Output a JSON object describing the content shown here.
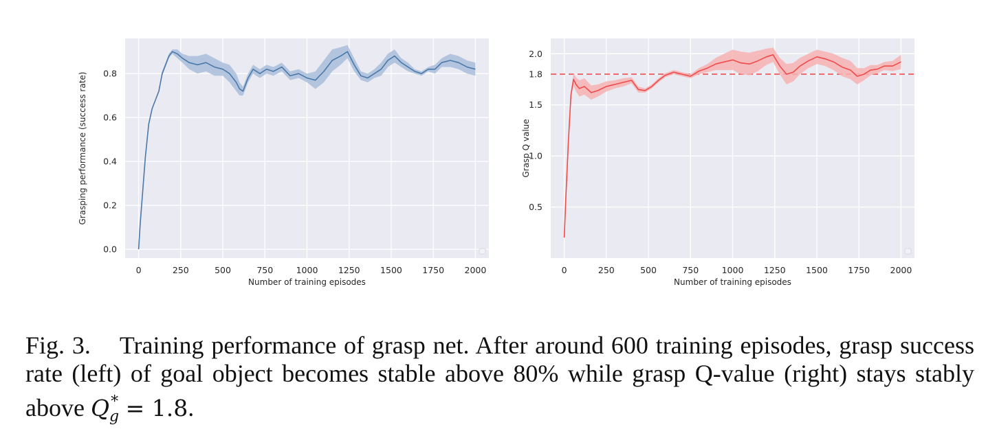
{
  "chart_data": [
    {
      "type": "line",
      "title": "",
      "xlabel": "Number of training episodes",
      "ylabel": "Grasping performance (success rate)",
      "xlim": [
        -80,
        2080
      ],
      "ylim": [
        -0.04,
        0.96
      ],
      "xticks": [
        0,
        250,
        500,
        750,
        1000,
        1250,
        1500,
        1750,
        2000
      ],
      "yticks": [
        0.0,
        0.2,
        0.4,
        0.6,
        0.8
      ],
      "ytick_labels": [
        "0.0",
        "0.2",
        "0.4",
        "0.6",
        "0.8"
      ],
      "grid": true,
      "series": [
        {
          "color": "#4a78a8",
          "band_color": "#a9bedb",
          "x": [
            0,
            10,
            25,
            40,
            60,
            80,
            100,
            120,
            140,
            160,
            180,
            200,
            230,
            260,
            300,
            350,
            400,
            450,
            500,
            540,
            580,
            600,
            620,
            650,
            680,
            720,
            760,
            800,
            850,
            900,
            950,
            1000,
            1050,
            1100,
            1150,
            1200,
            1240,
            1280,
            1320,
            1360,
            1400,
            1440,
            1480,
            1520,
            1560,
            1600,
            1640,
            1680,
            1720,
            1760,
            1800,
            1850,
            1900,
            1950,
            2000
          ],
          "y": [
            0.0,
            0.12,
            0.27,
            0.42,
            0.57,
            0.64,
            0.68,
            0.72,
            0.8,
            0.84,
            0.88,
            0.9,
            0.89,
            0.87,
            0.85,
            0.84,
            0.85,
            0.83,
            0.82,
            0.8,
            0.76,
            0.73,
            0.72,
            0.78,
            0.82,
            0.8,
            0.82,
            0.81,
            0.83,
            0.79,
            0.8,
            0.78,
            0.77,
            0.81,
            0.86,
            0.88,
            0.9,
            0.84,
            0.79,
            0.78,
            0.8,
            0.82,
            0.86,
            0.88,
            0.85,
            0.83,
            0.81,
            0.8,
            0.82,
            0.82,
            0.85,
            0.86,
            0.85,
            0.83,
            0.82
          ],
          "spread": [
            0.0,
            0.0,
            0.0,
            0.0,
            0.0,
            0.0,
            0.0,
            0.0,
            0.01,
            0.01,
            0.01,
            0.01,
            0.02,
            0.02,
            0.03,
            0.04,
            0.04,
            0.04,
            0.03,
            0.04,
            0.04,
            0.03,
            0.02,
            0.02,
            0.02,
            0.02,
            0.02,
            0.02,
            0.02,
            0.02,
            0.02,
            0.02,
            0.04,
            0.05,
            0.05,
            0.04,
            0.03,
            0.03,
            0.02,
            0.02,
            0.02,
            0.03,
            0.03,
            0.03,
            0.02,
            0.02,
            0.01,
            0.01,
            0.01,
            0.02,
            0.02,
            0.03,
            0.03,
            0.03,
            0.03
          ]
        }
      ]
    },
    {
      "type": "line",
      "title": "",
      "xlabel": "Number of training episodes",
      "ylabel": "Grasp Q value",
      "xlim": [
        -80,
        2080
      ],
      "ylim": [
        0.0,
        2.15
      ],
      "xticks": [
        0,
        250,
        500,
        750,
        1000,
        1250,
        1500,
        1750,
        2000
      ],
      "yticks": [
        0.5,
        1.0,
        1.5,
        1.8,
        2.0
      ],
      "ytick_labels": [
        "0.5",
        "1.0",
        "1.5",
        "1.8",
        "2.0"
      ],
      "grid": true,
      "reference_line": {
        "y": 1.8,
        "style": "dashed",
        "color": "#ee4c4c"
      },
      "series": [
        {
          "color": "#f04a4a",
          "band_color": "#f7b3b3",
          "x": [
            0,
            10,
            25,
            40,
            55,
            70,
            90,
            120,
            160,
            200,
            250,
            300,
            350,
            400,
            440,
            480,
            520,
            560,
            600,
            650,
            700,
            750,
            800,
            850,
            900,
            950,
            1000,
            1050,
            1100,
            1150,
            1200,
            1240,
            1280,
            1320,
            1360,
            1400,
            1450,
            1500,
            1550,
            1600,
            1650,
            1700,
            1740,
            1780,
            1820,
            1860,
            1900,
            1950,
            2000
          ],
          "y": [
            0.2,
            0.6,
            1.15,
            1.6,
            1.75,
            1.7,
            1.66,
            1.68,
            1.62,
            1.64,
            1.68,
            1.7,
            1.72,
            1.74,
            1.65,
            1.64,
            1.68,
            1.74,
            1.79,
            1.82,
            1.8,
            1.78,
            1.83,
            1.86,
            1.9,
            1.92,
            1.94,
            1.91,
            1.9,
            1.93,
            1.97,
            1.99,
            1.88,
            1.8,
            1.82,
            1.88,
            1.93,
            1.97,
            1.95,
            1.92,
            1.87,
            1.84,
            1.78,
            1.8,
            1.84,
            1.85,
            1.88,
            1.88,
            1.92
          ],
          "spread": [
            0.0,
            0.0,
            0.0,
            0.02,
            0.06,
            0.07,
            0.08,
            0.08,
            0.07,
            0.06,
            0.05,
            0.04,
            0.04,
            0.03,
            0.03,
            0.02,
            0.02,
            0.02,
            0.02,
            0.02,
            0.02,
            0.02,
            0.03,
            0.04,
            0.06,
            0.08,
            0.1,
            0.11,
            0.11,
            0.1,
            0.08,
            0.07,
            0.08,
            0.1,
            0.09,
            0.08,
            0.07,
            0.07,
            0.07,
            0.08,
            0.09,
            0.09,
            0.08,
            0.06,
            0.05,
            0.04,
            0.04,
            0.05,
            0.07
          ]
        }
      ]
    }
  ],
  "caption": {
    "fig_number": "Fig. 3.",
    "text_before": "Training performance of grasp net. After around 600 training episodes, grasp success rate (left) of goal object becomes stable above 80% while grasp Q-value (right) stays stably above ",
    "math_symbol": "Q",
    "math_sub": "g",
    "math_sup": "*",
    "math_rest": " = 1.8",
    "text_after": "."
  }
}
